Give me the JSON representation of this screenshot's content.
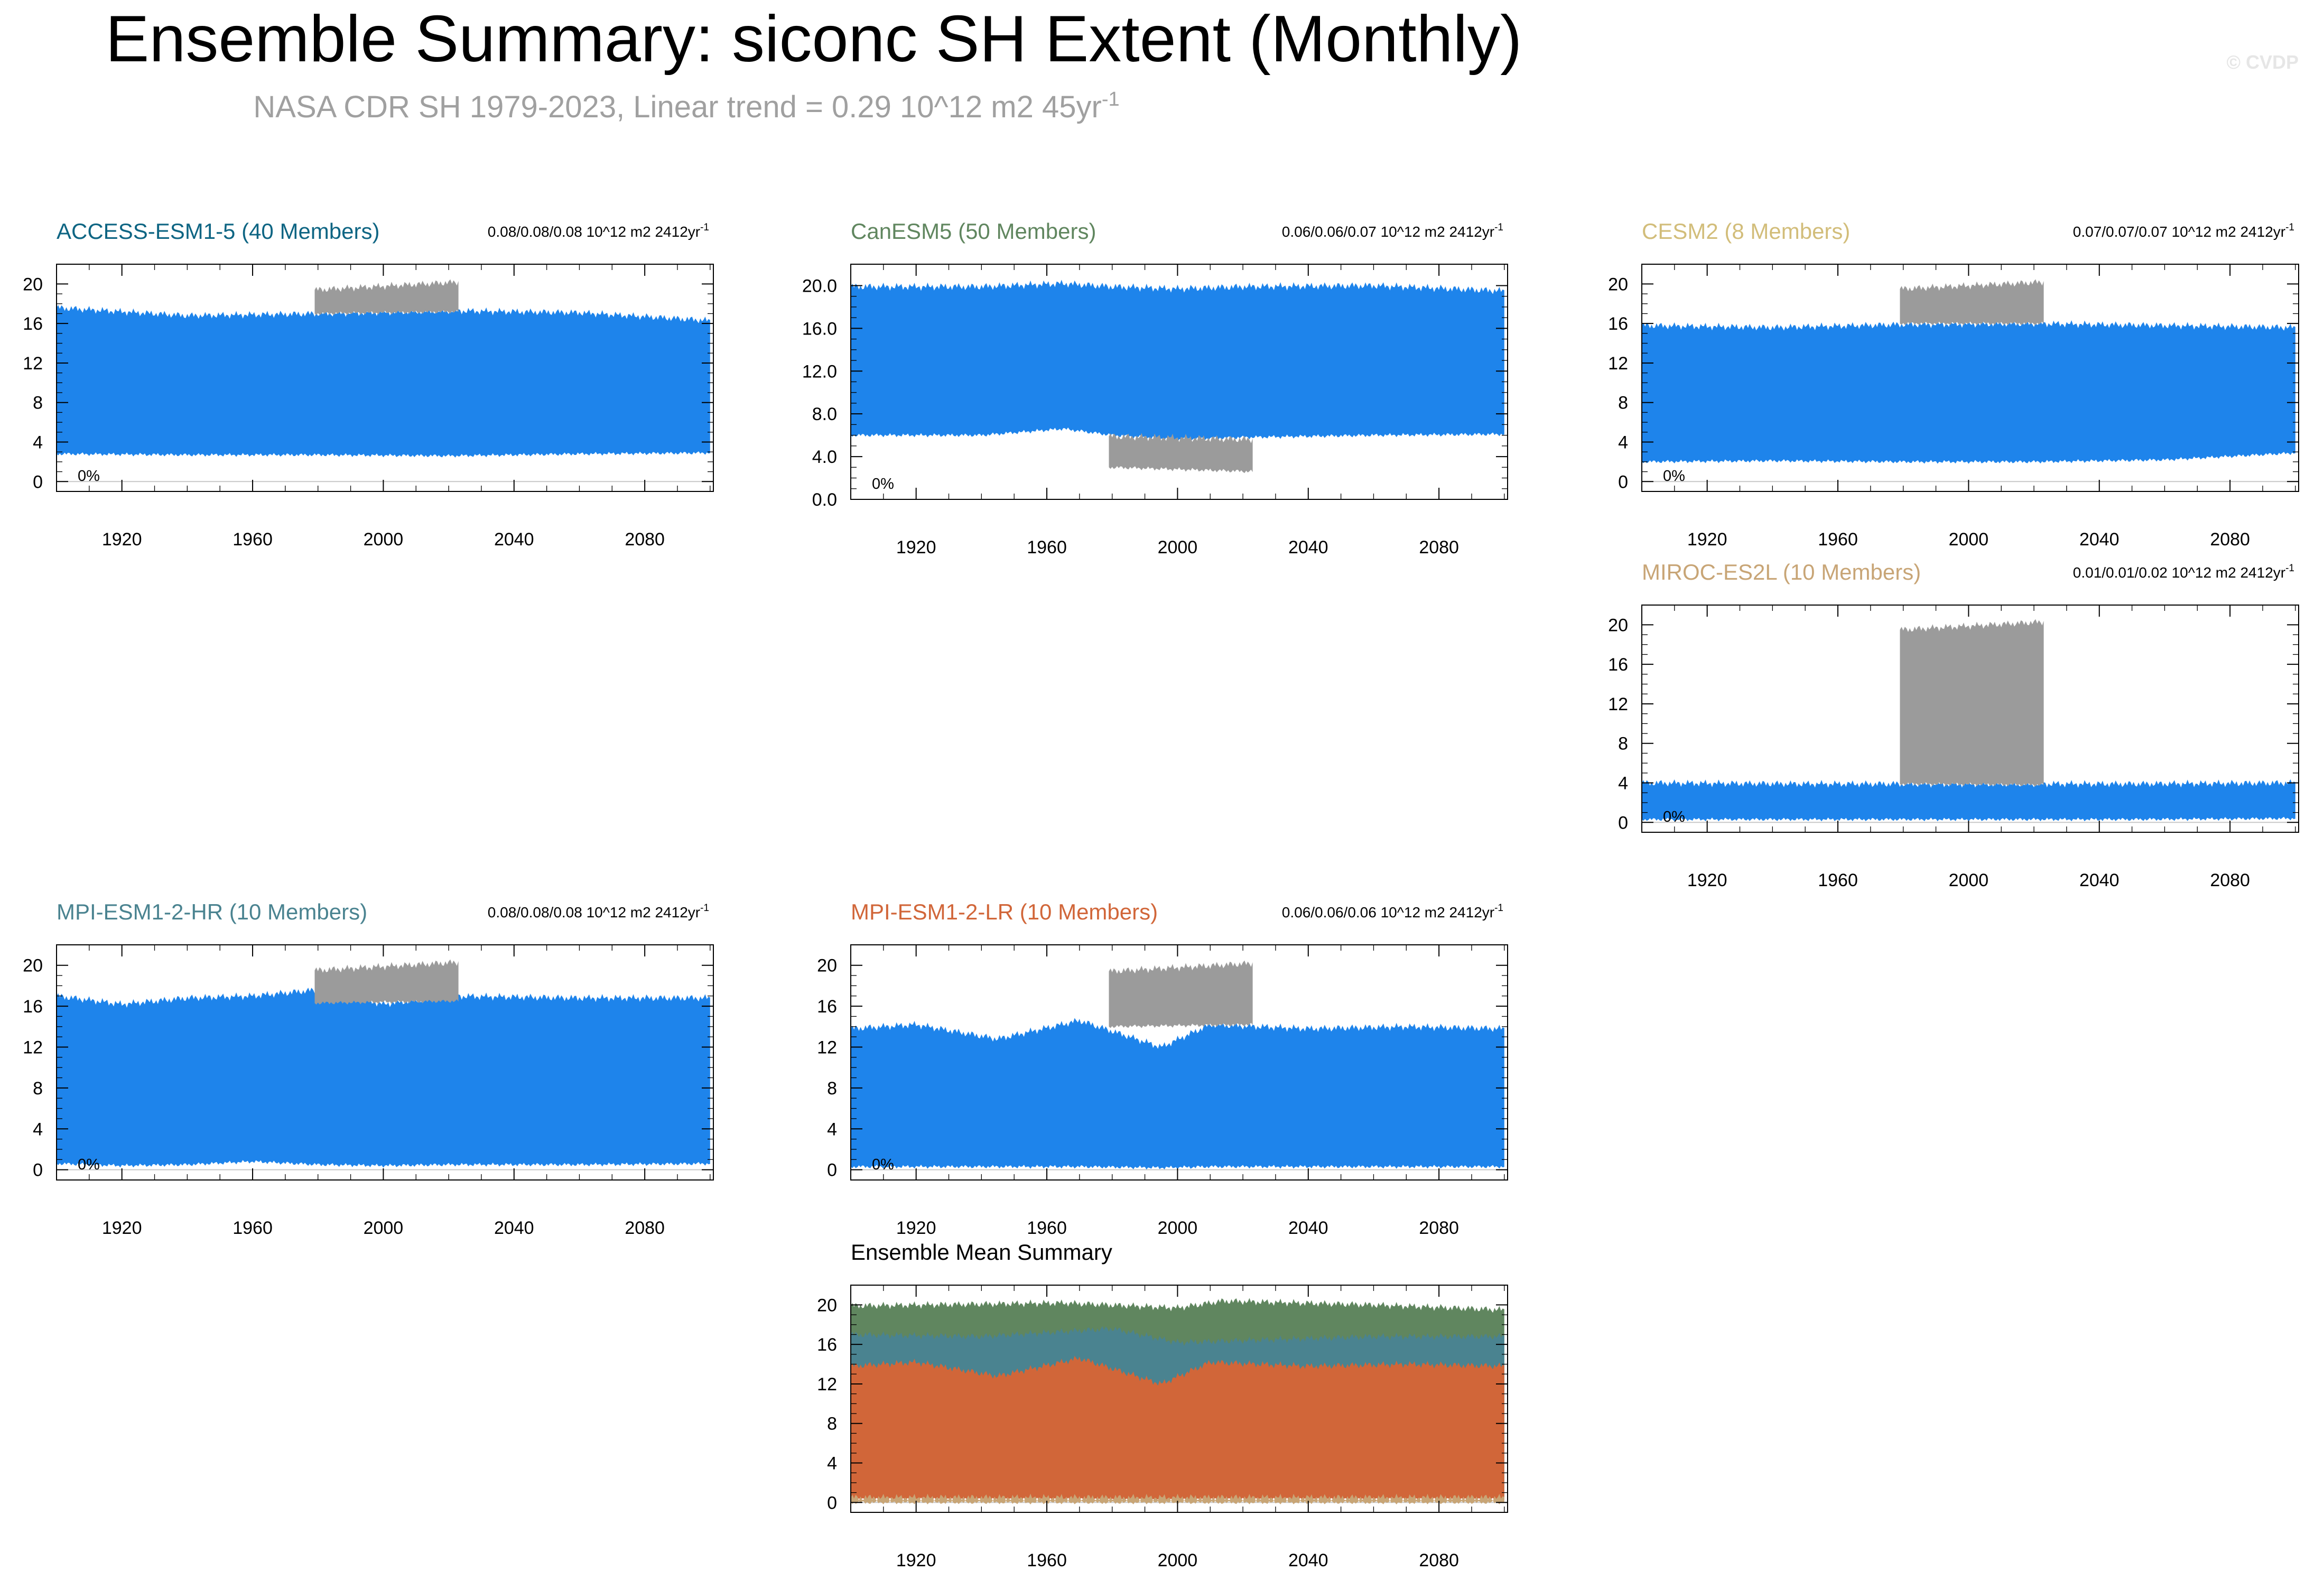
{
  "header": {
    "title": "Ensemble Summary: siconc SH Extent (Monthly)",
    "subtitle": "NASA CDR SH 1979-2023, Linear trend = 0.29 10^12 m2 45yr",
    "subtitle_sup": "-1",
    "copyright": "© CVDP"
  },
  "chart_data": [
    {
      "type": "area",
      "title": "ACCESS-ESM1-5 (40 Members)",
      "title_color": "#0e6583",
      "trend_text": "0.08/0.08/0.08 10^12 m2 2412yr",
      "trend_sup": "-1",
      "pct_label": "0%",
      "xlim": [
        1900,
        2101
      ],
      "ylim": [
        -1,
        22
      ],
      "xticks": [
        1920,
        1960,
        2000,
        2040,
        2080
      ],
      "yticks": [
        0,
        4,
        8,
        12,
        16,
        20
      ],
      "ytick_labels": [
        "0",
        "4",
        "8",
        "12",
        "16",
        "20"
      ],
      "model_band": {
        "x": [
          1900,
          1940,
          1980,
          2020,
          2060,
          2100
        ],
        "lower": [
          2.8,
          2.7,
          2.7,
          2.6,
          2.8,
          2.9
        ],
        "upper": [
          17.6,
          16.8,
          17.0,
          17.3,
          17.1,
          16.3
        ],
        "color": "#1e84eb"
      },
      "obs_band": {
        "x": [
          1979,
          2023
        ],
        "lower": [
          17.0,
          17.2
        ],
        "upper": [
          19.4,
          20.2
        ],
        "color": "#9b9b9b"
      }
    },
    {
      "type": "area",
      "title": "CanESM5 (50 Members)",
      "title_color": "#60865f",
      "trend_text": "0.06/0.06/0.07 10^12 m2 2412yr",
      "trend_sup": "-1",
      "pct_label": "0%",
      "xlim": [
        1900,
        2101
      ],
      "ylim": [
        0,
        22
      ],
      "xticks": [
        1920,
        1960,
        2000,
        2040,
        2080
      ],
      "yticks": [
        0,
        4,
        8,
        12,
        16,
        20
      ],
      "ytick_labels": [
        "0.0",
        "4.0",
        "8.0",
        "12.0",
        "16.0",
        "20.0"
      ],
      "model_band": {
        "x": [
          1900,
          1940,
          1965,
          1980,
          2000,
          2020,
          2060,
          2100
        ],
        "lower": [
          6.0,
          6.0,
          6.6,
          6.0,
          5.6,
          5.8,
          6.0,
          6.1
        ],
        "upper": [
          19.9,
          19.9,
          20.2,
          19.9,
          19.7,
          19.9,
          20.0,
          19.5
        ],
        "color": "#1e84eb"
      },
      "obs_band": {
        "x": [
          1979,
          2023
        ],
        "lower": [
          3.0,
          2.6
        ],
        "upper": [
          5.9,
          5.6
        ],
        "color": "#9b9b9b"
      }
    },
    {
      "type": "area",
      "title": "CESM2 (8 Members)",
      "title_color": "#d2bd7a",
      "trend_text": "0.07/0.07/0.07 10^12 m2 2412yr",
      "trend_sup": "-1",
      "pct_label": "0%",
      "xlim": [
        1900,
        2101
      ],
      "ylim": [
        -1,
        22
      ],
      "xticks": [
        1920,
        1960,
        2000,
        2040,
        2080
      ],
      "yticks": [
        0,
        4,
        8,
        12,
        16,
        20
      ],
      "ytick_labels": [
        "0",
        "4",
        "8",
        "12",
        "16",
        "20"
      ],
      "model_band": {
        "x": [
          1900,
          1940,
          1980,
          2020,
          2060,
          2100
        ],
        "lower": [
          2.0,
          2.1,
          2.0,
          2.0,
          2.2,
          2.9
        ],
        "upper": [
          15.8,
          15.6,
          15.9,
          16.0,
          15.8,
          15.6
        ],
        "color": "#1e84eb"
      },
      "obs_band": {
        "x": [
          1979,
          2023
        ],
        "lower": [
          16.0,
          16.0
        ],
        "upper": [
          19.5,
          20.2
        ],
        "color": "#9b9b9b"
      }
    },
    {
      "type": "area",
      "title": "MIROC-ES2L (10 Members)",
      "title_color": "#c8a576",
      "trend_text": "0.01/0.01/0.02 10^12 m2 2412yr",
      "trend_sup": "-1",
      "pct_label": "0%",
      "xlim": [
        1900,
        2101
      ],
      "ylim": [
        -1,
        22
      ],
      "xticks": [
        1920,
        1960,
        2000,
        2040,
        2080
      ],
      "yticks": [
        0,
        4,
        8,
        12,
        16,
        20
      ],
      "ytick_labels": [
        "0",
        "4",
        "8",
        "12",
        "16",
        "20"
      ],
      "model_band": {
        "x": [
          1900,
          1950,
          2000,
          2050,
          2100
        ],
        "lower": [
          0.3,
          0.3,
          0.3,
          0.3,
          0.4
        ],
        "upper": [
          4.0,
          3.9,
          3.9,
          3.9,
          4.0
        ],
        "color": "#1e84eb"
      },
      "obs_band": {
        "x": [
          1979,
          2023
        ],
        "lower": [
          3.9,
          3.8
        ],
        "upper": [
          19.5,
          20.3
        ],
        "color": "#9b9b9b"
      }
    },
    {
      "type": "area",
      "title": "MPI-ESM1-2-HR (10 Members)",
      "title_color": "#4a8390",
      "trend_text": "0.08/0.08/0.08 10^12 m2 2412yr",
      "trend_sup": "-1",
      "pct_label": "0%",
      "xlim": [
        1900,
        2101
      ],
      "ylim": [
        -1,
        22
      ],
      "xticks": [
        1920,
        1960,
        2000,
        2040,
        2080
      ],
      "yticks": [
        0,
        4,
        8,
        12,
        16,
        20
      ],
      "ytick_labels": [
        "0",
        "4",
        "8",
        "12",
        "16",
        "20"
      ],
      "model_band": {
        "x": [
          1900,
          1920,
          1940,
          1960,
          1980,
          2000,
          2020,
          2060,
          2100
        ],
        "lower": [
          0.6,
          0.4,
          0.5,
          0.8,
          0.5,
          0.4,
          0.5,
          0.5,
          0.6
        ],
        "upper": [
          17.0,
          16.2,
          16.8,
          17.0,
          17.6,
          16.2,
          17.0,
          16.8,
          16.8
        ],
        "color": "#1e84eb"
      },
      "obs_band": {
        "x": [
          1979,
          2023
        ],
        "lower": [
          16.3,
          16.5
        ],
        "upper": [
          19.5,
          20.3
        ],
        "color": "#9b9b9b"
      }
    },
    {
      "type": "area",
      "title": "MPI-ESM1-2-LR (10 Members)",
      "title_color": "#d16639",
      "trend_text": "0.06/0.06/0.06 10^12 m2 2412yr",
      "trend_sup": "-1",
      "pct_label": "0%",
      "xlim": [
        1900,
        2101
      ],
      "ylim": [
        -1,
        22
      ],
      "xticks": [
        1920,
        1960,
        2000,
        2040,
        2080
      ],
      "yticks": [
        0,
        4,
        8,
        12,
        16,
        20
      ],
      "ytick_labels": [
        "0",
        "4",
        "8",
        "12",
        "16",
        "20"
      ],
      "model_band": {
        "x": [
          1900,
          1920,
          1945,
          1970,
          1995,
          2010,
          2040,
          2070,
          2100
        ],
        "lower": [
          0.3,
          0.3,
          0.3,
          0.3,
          0.2,
          0.3,
          0.3,
          0.3,
          0.3
        ],
        "upper": [
          13.8,
          14.2,
          12.8,
          14.6,
          12.0,
          14.2,
          13.8,
          14.0,
          13.8
        ],
        "color": "#1e84eb"
      },
      "obs_band": {
        "x": [
          1979,
          2023
        ],
        "lower": [
          14.0,
          14.2
        ],
        "upper": [
          19.4,
          20.2
        ],
        "color": "#9b9b9b"
      }
    },
    {
      "type": "area",
      "title": "Ensemble Mean Summary",
      "title_color": "#000000",
      "xlim": [
        1900,
        2101
      ],
      "ylim": [
        -1,
        22
      ],
      "xticks": [
        1920,
        1960,
        2000,
        2040,
        2080
      ],
      "yticks": [
        0,
        4,
        8,
        12,
        16,
        20
      ],
      "ytick_labels": [
        "0",
        "4",
        "8",
        "12",
        "16",
        "20"
      ],
      "series": [
        {
          "name": "CanESM5",
          "color": "#60865f",
          "x": [
            1900,
            1965,
            2000,
            2014,
            2060,
            2100
          ],
          "lower": [
            6.0,
            6.6,
            5.6,
            5.8,
            6.0,
            6.1
          ],
          "upper": [
            19.9,
            20.2,
            19.7,
            20.4,
            20.0,
            19.5
          ]
        },
        {
          "name": "MPI-ESM1-2-HR",
          "color": "#4a8390",
          "x": [
            1900,
            1940,
            1980,
            2000,
            2060,
            2100
          ],
          "lower": [
            0.6,
            0.5,
            0.5,
            0.4,
            0.5,
            0.6
          ],
          "upper": [
            17.0,
            16.8,
            17.6,
            16.2,
            16.8,
            16.8
          ]
        },
        {
          "name": "MPI-ESM1-2-LR",
          "color": "#d16639",
          "x": [
            1900,
            1920,
            1945,
            1970,
            1995,
            2010,
            2040,
            2070,
            2100
          ],
          "lower": [
            0.3,
            0.3,
            0.3,
            0.3,
            0.2,
            0.3,
            0.3,
            0.3,
            0.3
          ],
          "upper": [
            13.8,
            14.2,
            12.8,
            14.6,
            12.0,
            14.2,
            13.8,
            14.0,
            13.8
          ]
        },
        {
          "name": "MIROC-ES2L",
          "color": "#c8a576",
          "x": [
            1900,
            2100
          ],
          "lower": [
            0.0,
            0.0
          ],
          "upper": [
            0.5,
            0.5
          ]
        }
      ]
    }
  ]
}
